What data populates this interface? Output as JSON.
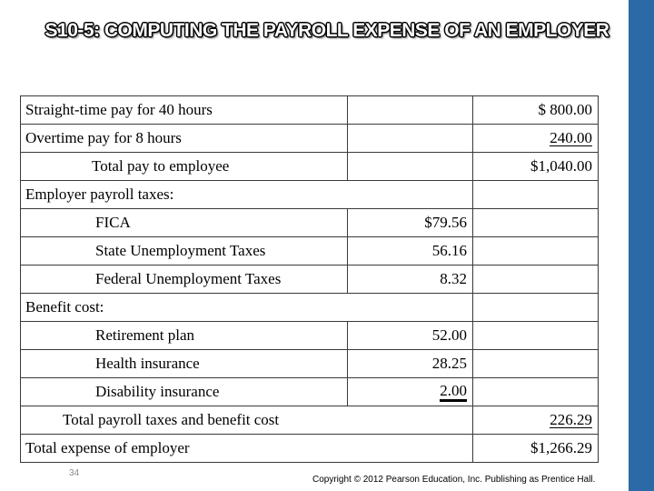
{
  "slide": {
    "title": "S10-5: COMPUTING THE PAYROLL EXPENSE OF AN EMPLOYER",
    "page_number": "34",
    "copyright": "Copyright © 2012 Pearson Education, Inc. Publishing as Prentice Hall.",
    "accent_color": "#2b6aa6"
  },
  "rows": {
    "straight_time": {
      "label": "Straight-time pay for 40 hours",
      "amount": "$   800.00"
    },
    "overtime": {
      "label": "Overtime pay for 8 hours",
      "amount": "240.00"
    },
    "total_pay": {
      "label": "Total pay to employee",
      "amount": "$1,040.00"
    },
    "employer_taxes_header": {
      "label": "Employer payroll taxes:"
    },
    "fica": {
      "label": "FICA",
      "amount": "$79.56"
    },
    "sut": {
      "label": "State Unemployment Taxes",
      "amount": "56.16"
    },
    "fut": {
      "label": "Federal Unemployment Taxes",
      "amount": "8.32"
    },
    "benefit_header": {
      "label": "Benefit cost:"
    },
    "retirement": {
      "label": "Retirement plan",
      "amount": "52.00"
    },
    "health": {
      "label": "Health insurance",
      "amount": "28.25"
    },
    "disability": {
      "label": "Disability insurance",
      "amount": "2.00"
    },
    "total_taxes_benefits": {
      "label": "Total payroll taxes and benefit cost",
      "amount": "226.29"
    },
    "total_expense": {
      "label": "Total expense of employer",
      "amount": "$1,266.29"
    }
  }
}
